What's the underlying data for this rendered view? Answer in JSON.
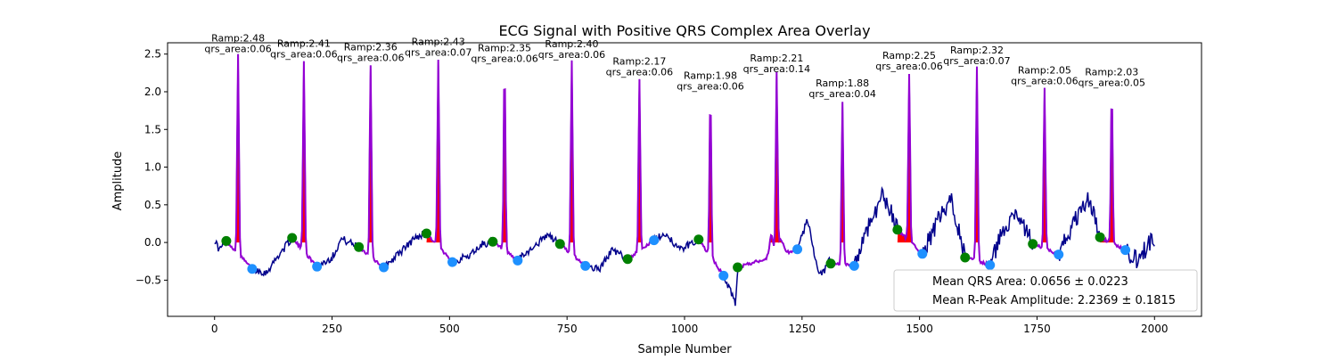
{
  "chart_data": {
    "type": "line",
    "title": "ECG Signal with Positive QRS Complex Area Overlay",
    "xlabel": "Sample Number",
    "ylabel": "Amplitude",
    "xlim": [
      -100,
      2100
    ],
    "ylim": [
      -0.98,
      2.65
    ],
    "xticks": [
      0,
      250,
      500,
      750,
      1000,
      1250,
      1500,
      1750,
      2000
    ],
    "xtick_labels": [
      "0",
      "250",
      "500",
      "750",
      "1000",
      "1250",
      "1500",
      "1750",
      "2000"
    ],
    "yticks": [
      -0.5,
      0.0,
      0.5,
      1.0,
      1.5,
      2.0,
      2.5
    ],
    "ytick_labels": [
      "−0.5",
      "0.0",
      "0.5",
      "1.0",
      "1.5",
      "2.0",
      "2.5"
    ],
    "grid": false,
    "colors": {
      "ecg_line": "#00008b",
      "qrs_overlay_line": "#9400d3",
      "qrs_area_fill": "#ff0000",
      "q_points": "#008000",
      "s_points": "#1e90ff"
    },
    "beats": [
      {
        "r_x": 50,
        "r_amp": 2.48,
        "q_x": 25,
        "q_y": 0.02,
        "s_x": 80,
        "s_y": -0.35,
        "label_amp": "Ramp:2.48",
        "label_area": "qrs_area:0.06"
      },
      {
        "r_x": 190,
        "r_amp": 2.41,
        "q_x": 165,
        "q_y": 0.06,
        "s_x": 218,
        "s_y": -0.32,
        "label_amp": "Ramp:2.41",
        "label_area": "qrs_area:0.06"
      },
      {
        "r_x": 332,
        "r_amp": 2.36,
        "q_x": 307,
        "q_y": -0.06,
        "s_x": 360,
        "s_y": -0.33,
        "label_amp": "Ramp:2.36",
        "label_area": "qrs_area:0.06"
      },
      {
        "r_x": 476,
        "r_amp": 2.43,
        "q_x": 451,
        "q_y": 0.12,
        "s_x": 506,
        "s_y": -0.26,
        "label_amp": "Ramp:2.43",
        "label_area": "qrs_area:0.07"
      },
      {
        "r_x": 617,
        "r_amp": 2.35,
        "q_x": 592,
        "q_y": 0.01,
        "s_x": 645,
        "s_y": -0.24,
        "label_amp": "Ramp:2.35",
        "label_area": "qrs_area:0.06"
      },
      {
        "r_x": 760,
        "r_amp": 2.4,
        "q_x": 735,
        "q_y": -0.02,
        "s_x": 789,
        "s_y": -0.31,
        "label_amp": "Ramp:2.40",
        "label_area": "qrs_area:0.06"
      },
      {
        "r_x": 904,
        "r_amp": 2.17,
        "q_x": 879,
        "q_y": -0.22,
        "s_x": 935,
        "s_y": 0.03,
        "label_amp": "Ramp:2.17",
        "label_area": "qrs_area:0.06"
      },
      {
        "r_x": 1055,
        "r_amp": 1.98,
        "q_x": 1030,
        "q_y": 0.04,
        "s_x": 1083,
        "s_y": -0.44,
        "label_amp": "Ramp:1.98",
        "label_area": "qrs_area:0.06"
      },
      {
        "r_x": 1196,
        "r_amp": 2.21,
        "q_x": 1113,
        "q_y": -0.33,
        "s_x": 1240,
        "s_y": -0.09,
        "label_amp": "Ramp:2.21",
        "label_area": "qrs_area:0.14"
      },
      {
        "r_x": 1336,
        "r_amp": 1.88,
        "q_x": 1311,
        "q_y": -0.28,
        "s_x": 1361,
        "s_y": -0.31,
        "label_amp": "Ramp:1.88",
        "label_area": "qrs_area:0.04"
      },
      {
        "r_x": 1478,
        "r_amp": 2.25,
        "q_x": 1453,
        "q_y": 0.17,
        "s_x": 1506,
        "s_y": -0.15,
        "label_amp": "Ramp:2.25",
        "label_area": "qrs_area:0.06"
      },
      {
        "r_x": 1622,
        "r_amp": 2.32,
        "q_x": 1597,
        "q_y": -0.2,
        "s_x": 1650,
        "s_y": -0.3,
        "label_amp": "Ramp:2.32",
        "label_area": "qrs_area:0.07"
      },
      {
        "r_x": 1766,
        "r_amp": 2.05,
        "q_x": 1741,
        "q_y": -0.02,
        "s_x": 1796,
        "s_y": -0.16,
        "label_amp": "Ramp:2.05",
        "label_area": "qrs_area:0.06"
      },
      {
        "r_x": 1909,
        "r_amp": 2.03,
        "q_x": 1884,
        "q_y": 0.07,
        "s_x": 1938,
        "s_y": -0.1,
        "label_amp": "Ramp:2.03",
        "label_area": "qrs_area:0.05"
      }
    ],
    "legend": {
      "placement": "lower-right",
      "entries": [
        "Mean QRS Area: 0.0656 ± 0.0223",
        "Mean R-Peak Amplitude: 2.2369 ± 0.1815"
      ]
    }
  }
}
